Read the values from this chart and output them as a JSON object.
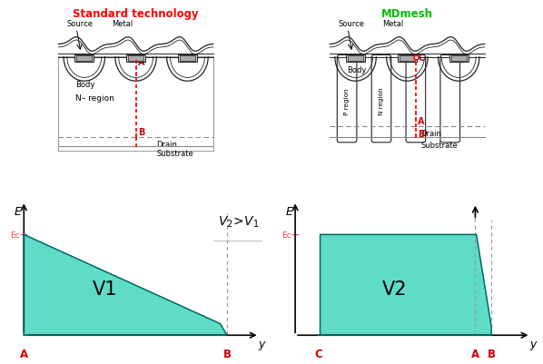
{
  "title_left": "Standard technology",
  "title_right": "MDmesh",
  "title_left_color": "#ff0000",
  "title_right_color": "#00bb00",
  "teal_color": "#4dd9c0",
  "teal_edge_color": "#006060",
  "v1_label": "V1",
  "v2_label": "V2",
  "ec_color": "#ff4444",
  "label_color": "#cc0000",
  "bg_color": "#ffffff",
  "gray_line": "#888888",
  "dark_line": "#222222"
}
